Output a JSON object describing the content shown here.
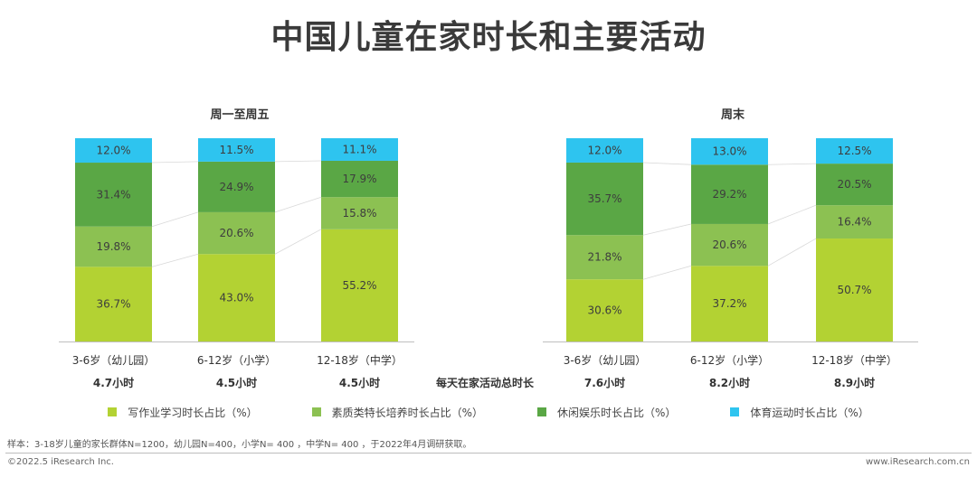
{
  "title": "中国儿童在家时长和主要活动",
  "colors": {
    "homework": "#b3d233",
    "quality": "#8cc152",
    "leisure": "#5aa745",
    "sports": "#2ec4ef"
  },
  "legend": [
    {
      "label": "写作业学习时长占比（%）",
      "color": "#b3d233"
    },
    {
      "label": "素质类特长培养时长占比（%）",
      "color": "#8cc152"
    },
    {
      "label": "休闲娱乐时长占比（%）",
      "color": "#5aa745"
    },
    {
      "label": "体育运动时长占比（%）",
      "color": "#2ec4ef"
    }
  ],
  "total_label": "每天在家活动总时长",
  "source": "样本：3-18岁儿童的家长群体N=1200，幼儿园N=400，小学N= 400 ，中学N= 400 ，于2022年4月调研获取。",
  "footer_left": "©2022.5 iResearch Inc.",
  "footer_right": "www.iResearch.com.cn",
  "chart_data": [
    {
      "type": "bar",
      "stacked": true,
      "percent_stacked": true,
      "title": "周一至周五",
      "categories": [
        "3-6岁（幼儿园）",
        "6-12岁（小学）",
        "12-18岁（中学）"
      ],
      "totals": [
        "4.7小时",
        "4.5小时",
        "4.5小时"
      ],
      "series": [
        {
          "name": "写作业学习时长占比（%）",
          "values": [
            36.7,
            43.0,
            55.2
          ],
          "labels": [
            "36.7%",
            "43.0%",
            "55.2%"
          ]
        },
        {
          "name": "素质类特长培养时长占比（%）",
          "values": [
            19.8,
            20.6,
            15.8
          ],
          "labels": [
            "19.8%",
            "20.6%",
            "15.8%"
          ]
        },
        {
          "name": "休闲娱乐时长占比（%）",
          "values": [
            31.4,
            24.9,
            17.9
          ],
          "labels": [
            "31.4%",
            "24.9%",
            "17.9%"
          ]
        },
        {
          "name": "体育运动时长占比（%）",
          "values": [
            12.0,
            11.5,
            11.1
          ],
          "labels": [
            "12.0%",
            "11.5%",
            "11.1%"
          ]
        }
      ],
      "ylim": [
        0,
        100
      ]
    },
    {
      "type": "bar",
      "stacked": true,
      "percent_stacked": true,
      "title": "周末",
      "categories": [
        "3-6岁（幼儿园）",
        "6-12岁（小学）",
        "12-18岁（中学）"
      ],
      "totals": [
        "7.6小时",
        "8.2小时",
        "8.9小时"
      ],
      "series": [
        {
          "name": "写作业学习时长占比（%）",
          "values": [
            30.6,
            37.2,
            50.7
          ],
          "labels": [
            "30.6%",
            "37.2%",
            "50.7%"
          ]
        },
        {
          "name": "素质类特长培养时长占比（%）",
          "values": [
            21.8,
            20.6,
            16.4
          ],
          "labels": [
            "21.8%",
            "20.6%",
            "16.4%"
          ]
        },
        {
          "name": "休闲娱乐时长占比（%）",
          "values": [
            35.7,
            29.2,
            20.5
          ],
          "labels": [
            "35.7%",
            "29.2%",
            "20.5%"
          ]
        },
        {
          "name": "体育运动时长占比（%）",
          "values": [
            12.0,
            13.0,
            12.5
          ],
          "labels": [
            "12.0%",
            "13.0%",
            "12.5%"
          ]
        }
      ],
      "ylim": [
        0,
        100
      ]
    }
  ]
}
